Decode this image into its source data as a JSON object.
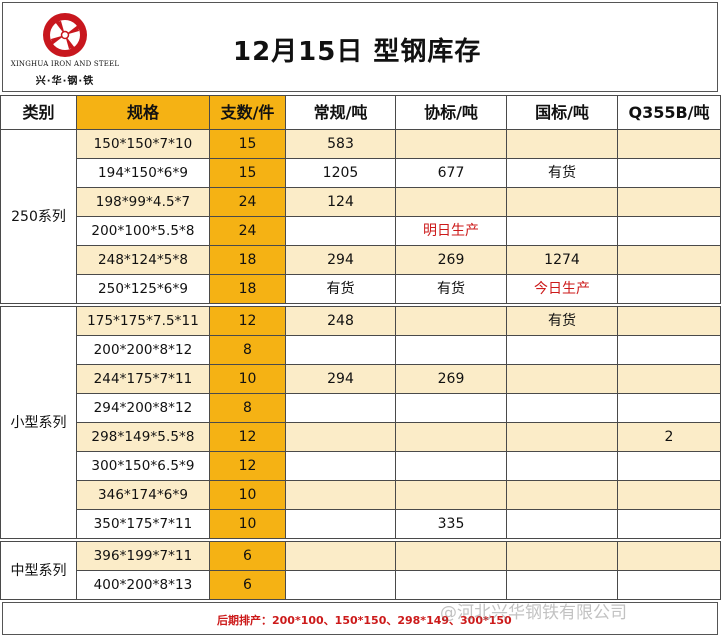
{
  "header": {
    "title": "12月15日  型钢库存",
    "logo_en": "XINGHUA IRON AND STEEL",
    "logo_cn": "兴·华·钢·铁"
  },
  "table": {
    "columns": [
      "类别",
      "规格",
      "支数/件",
      "常规/吨",
      "协标/吨",
      "国标/吨",
      "Q355B/吨"
    ],
    "groups": [
      {
        "category": "250系列",
        "rows": [
          {
            "spec": "150*150*7*10",
            "count": "15",
            "regular": "583",
            "assoc": "",
            "national": "",
            "q355b": ""
          },
          {
            "spec": "194*150*6*9",
            "count": "15",
            "regular": "1205",
            "assoc": "677",
            "national": "有货",
            "q355b": ""
          },
          {
            "spec": "198*99*4.5*7",
            "count": "24",
            "regular": "124",
            "assoc": "",
            "national": "",
            "q355b": ""
          },
          {
            "spec": "200*100*5.5*8",
            "count": "24",
            "regular": "",
            "assoc": "明日生产",
            "national": "",
            "q355b": ""
          },
          {
            "spec": "248*124*5*8",
            "count": "18",
            "regular": "294",
            "assoc": "269",
            "national": "1274",
            "q355b": ""
          },
          {
            "spec": "250*125*6*9",
            "count": "18",
            "regular": "有货",
            "assoc": "有货",
            "national": "今日生产",
            "q355b": ""
          }
        ]
      },
      {
        "category": "小型系列",
        "rows": [
          {
            "spec": "175*175*7.5*11",
            "count": "12",
            "regular": "248",
            "assoc": "",
            "national": "有货",
            "q355b": ""
          },
          {
            "spec": "200*200*8*12",
            "count": "8",
            "regular": "",
            "assoc": "",
            "national": "",
            "q355b": ""
          },
          {
            "spec": "244*175*7*11",
            "count": "10",
            "regular": "294",
            "assoc": "269",
            "national": "",
            "q355b": ""
          },
          {
            "spec": "294*200*8*12",
            "count": "8",
            "regular": "",
            "assoc": "",
            "national": "",
            "q355b": ""
          },
          {
            "spec": "298*149*5.5*8",
            "count": "12",
            "regular": "",
            "assoc": "",
            "national": "",
            "q355b": "2"
          },
          {
            "spec": "300*150*6.5*9",
            "count": "12",
            "regular": "",
            "assoc": "",
            "national": "",
            "q355b": ""
          },
          {
            "spec": "346*174*6*9",
            "count": "10",
            "regular": "",
            "assoc": "",
            "national": "",
            "q355b": ""
          },
          {
            "spec": "350*175*7*11",
            "count": "10",
            "regular": "",
            "assoc": "335",
            "national": "",
            "q355b": ""
          }
        ]
      },
      {
        "category": "中型系列",
        "rows": [
          {
            "spec": "396*199*7*11",
            "count": "6",
            "regular": "",
            "assoc": "",
            "national": "",
            "q355b": ""
          },
          {
            "spec": "400*200*8*13",
            "count": "6",
            "regular": "",
            "assoc": "",
            "national": "",
            "q355b": ""
          }
        ]
      }
    ],
    "red_values": [
      "明日生产",
      "今日生产"
    ]
  },
  "footer": {
    "text": "后期排产：200*100、150*150、298*149、300*150"
  },
  "watermark": "@河北兴华钢铁有限公司",
  "colors": {
    "orange": "#f5b214",
    "light_orange": "#fbecc8",
    "red_text": "#cc1a1a",
    "logo_red": "#c8171e"
  },
  "icons": [
    "company-logo-icon"
  ]
}
